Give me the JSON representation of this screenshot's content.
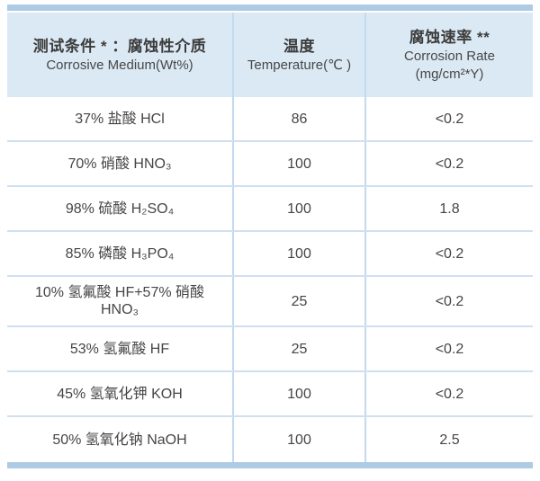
{
  "table": {
    "header": {
      "medium_zh": "测试条件 * ：腐蚀性介质",
      "medium_en": "Corrosive Medium(Wt%)",
      "temperature_zh": "温度",
      "temperature_en": "Temperature(℃ )",
      "rate_zh": "腐蚀速率 **",
      "rate_en": "Corrosion Rate",
      "rate_unit": "(mg/cm²*Y)"
    },
    "rows": [
      {
        "medium": "37% 盐酸 HCl",
        "temperature": "86",
        "rate": "<0.2"
      },
      {
        "medium": "70% 硝酸 HNO₃",
        "temperature": "100",
        "rate": "<0.2"
      },
      {
        "medium": "98% 硫酸 H₂SO₄",
        "temperature": "100",
        "rate": "1.8"
      },
      {
        "medium": "85% 磷酸 H₃PO₄",
        "temperature": "100",
        "rate": "<0.2"
      },
      {
        "medium": "10% 氢氟酸 HF+57% 硝酸 HNO₃",
        "temperature": "25",
        "rate": "<0.2"
      },
      {
        "medium": "53% 氢氟酸 HF",
        "temperature": "25",
        "rate": "<0.2"
      },
      {
        "medium": "45% 氢氧化钾 KOH",
        "temperature": "100",
        "rate": "<0.2"
      },
      {
        "medium": "50% 氢氧化钠 NaOH",
        "temperature": "100",
        "rate": "2.5"
      }
    ]
  },
  "chart_data": {
    "type": "table",
    "columns": [
      "测试条件*：腐蚀性介质 Corrosive Medium(Wt%)",
      "温度 Temperature(℃)",
      "腐蚀速率** Corrosion Rate (mg/cm²*Y)"
    ],
    "rows": [
      [
        "37% 盐酸 HCl",
        86,
        "<0.2"
      ],
      [
        "70% 硝酸 HNO₃",
        100,
        "<0.2"
      ],
      [
        "98% 硫酸 H₂SO₄",
        100,
        "1.8"
      ],
      [
        "85% 磷酸 H₃PO₄",
        100,
        "<0.2"
      ],
      [
        "10% 氢氟酸 HF+57% 硝酸 HNO₃",
        25,
        "<0.2"
      ],
      [
        "53% 氢氟酸 HF",
        25,
        "<0.2"
      ],
      [
        "45% 氢氧化钾 KOH",
        100,
        "<0.2"
      ],
      [
        "50% 氢氧化钠 NaOH",
        100,
        "2.5"
      ]
    ]
  },
  "colors": {
    "accent_bar": "#adcbe4",
    "header_bg": "#dbe9f4",
    "column_divider": "#c3d9ed",
    "row_divider": "#cfe0f0",
    "text": "#454545"
  }
}
